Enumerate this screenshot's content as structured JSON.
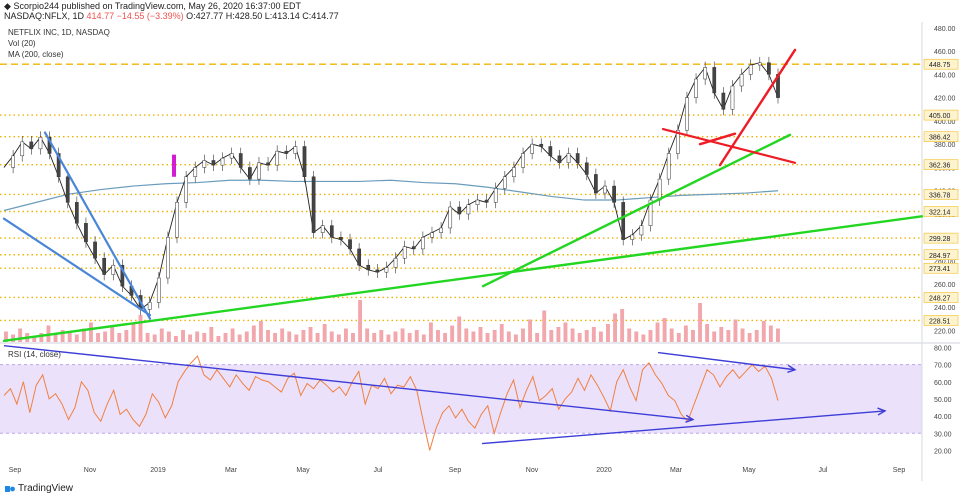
{
  "header": {
    "publisher": "Scorpio244 published on TradingView.com, May 26, 2020 16:37:00 EDT",
    "symbol": "NASDAQ:NFLX, 1D",
    "last": "414.77",
    "change": "−14.55 (−3.39%)",
    "ohlc": "O:427.77 H:428.50 L:413.14 C:414.77"
  },
  "legend": {
    "title": "NETFLIX INC, 1D, NASDAQ",
    "vol": "Vol (20)",
    "ma": "MA (200, close)",
    "rsi": "RSI (14, close)"
  },
  "footer": {
    "brand": "TradingView"
  },
  "colors": {
    "price": "#222222",
    "ma": "#6a9cbd",
    "volume": "#f2a7ac",
    "rsi": "#f08040",
    "rsi_band": "#ece1fb",
    "green": "#22d622",
    "blue_line": "#4a86d8",
    "red": "#ee1c25",
    "gold": "#f0b400",
    "indigo": "#3d3dd8"
  },
  "chart_data": {
    "type": "line",
    "title": "NETFLIX INC, 1D, NASDAQ",
    "price_axis": {
      "ylim": [
        210,
        485
      ],
      "ticks": [
        220,
        240,
        260,
        280,
        300,
        320,
        340,
        360,
        380,
        400,
        420,
        440,
        460,
        480
      ]
    },
    "levels": [
      {
        "value": 448.75,
        "label": "448.75",
        "style": "dashed"
      },
      {
        "value": 405.0,
        "label": "405.00",
        "style": "dotted"
      },
      {
        "value": 386.42,
        "label": "386.42",
        "style": "dotted"
      },
      {
        "value": 362.36,
        "label": "362.36",
        "style": "dotted"
      },
      {
        "value": 336.78,
        "label": "336.78",
        "style": "dotted"
      },
      {
        "value": 322.14,
        "label": "322.14",
        "style": "dotted"
      },
      {
        "value": 299.28,
        "label": "299.28",
        "style": "dotted"
      },
      {
        "value": 284.97,
        "label": "284.97",
        "style": "dotted"
      },
      {
        "value": 273.41,
        "label": "273.41",
        "style": "dotted"
      },
      {
        "value": 248.27,
        "label": "248.27",
        "style": "dotted"
      },
      {
        "value": 228.51,
        "label": "228.51",
        "style": "dotted"
      }
    ],
    "x_labels": [
      "Sep",
      "Nov",
      "2019",
      "Mar",
      "May",
      "Jul",
      "Sep",
      "Nov",
      "2020",
      "Mar",
      "May",
      "Jul",
      "Sep"
    ],
    "close_series": [
      360,
      370,
      382,
      376,
      386,
      372,
      352,
      330,
      312,
      296,
      282,
      268,
      276,
      258,
      250,
      238,
      244,
      265,
      300,
      330,
      352,
      360,
      366,
      362,
      368,
      372,
      360,
      350,
      364,
      362,
      374,
      372,
      378,
      352,
      304,
      310,
      300,
      298,
      290,
      276,
      272,
      270,
      274,
      282,
      292,
      290,
      300,
      304,
      308,
      326,
      320,
      328,
      332,
      330,
      342,
      352,
      360,
      372,
      380,
      378,
      370,
      364,
      372,
      364,
      354,
      338,
      344,
      330,
      298,
      302,
      310,
      332,
      350,
      372,
      392,
      420,
      436,
      446,
      424,
      410,
      430,
      440,
      448,
      450,
      440,
      420
    ],
    "ma_series": [
      323,
      330,
      337,
      341,
      344,
      346,
      347,
      349,
      349,
      348,
      348,
      348,
      349,
      347,
      346,
      343,
      339,
      335,
      332,
      332,
      334,
      336,
      337,
      338,
      340
    ],
    "volume": {
      "series": [
        7,
        5,
        9,
        6,
        4,
        6,
        11,
        5,
        8,
        7,
        5,
        9,
        13,
        6,
        7,
        10,
        6,
        8,
        12,
        18,
        6,
        5,
        9,
        7,
        4,
        8,
        5,
        7,
        6,
        10,
        4,
        6,
        9,
        5,
        7,
        11,
        14,
        8,
        6,
        9,
        7,
        5,
        8,
        10,
        6,
        12,
        7,
        5,
        9,
        6,
        28,
        9,
        6,
        8,
        5,
        7,
        9,
        6,
        8,
        5,
        13,
        8,
        6,
        11,
        17,
        9,
        7,
        10,
        6,
        8,
        12,
        7,
        5,
        9,
        15,
        6,
        21,
        8,
        10,
        13,
        9,
        6,
        8,
        10,
        7,
        12,
        19,
        22,
        9,
        7,
        5,
        8,
        13,
        16,
        9,
        6,
        11,
        8,
        26,
        12,
        7,
        10,
        8,
        15,
        9,
        6,
        8,
        14,
        11,
        9
      ]
    },
    "rsi": {
      "ylim": [
        15,
        82
      ],
      "ticks": [
        20,
        30,
        40,
        50,
        60,
        70,
        80
      ],
      "band": [
        30,
        70
      ],
      "series": [
        52,
        56,
        47,
        60,
        42,
        58,
        64,
        50,
        53,
        47,
        38,
        45,
        60,
        55,
        42,
        37,
        47,
        55,
        41,
        44,
        38,
        34,
        41,
        53,
        48,
        39,
        46,
        60,
        66,
        71,
        75,
        64,
        61,
        67,
        62,
        57,
        64,
        59,
        55,
        63,
        61,
        60,
        57,
        54,
        62,
        65,
        52,
        59,
        56,
        61,
        58,
        54,
        57,
        52,
        60,
        66,
        47,
        58,
        56,
        62,
        53,
        58,
        57,
        63,
        55,
        37,
        20,
        33,
        42,
        46,
        39,
        44,
        37,
        33,
        41,
        46,
        30,
        42,
        53,
        61,
        45,
        55,
        63,
        49,
        52,
        56,
        44,
        50,
        54,
        62,
        55,
        64,
        58,
        51,
        43,
        60,
        67,
        57,
        49,
        67,
        71,
        64,
        59,
        52,
        49,
        41,
        37,
        47,
        57,
        67,
        64,
        57,
        63,
        67,
        62,
        66,
        70,
        66,
        69,
        62,
        49
      ]
    }
  }
}
